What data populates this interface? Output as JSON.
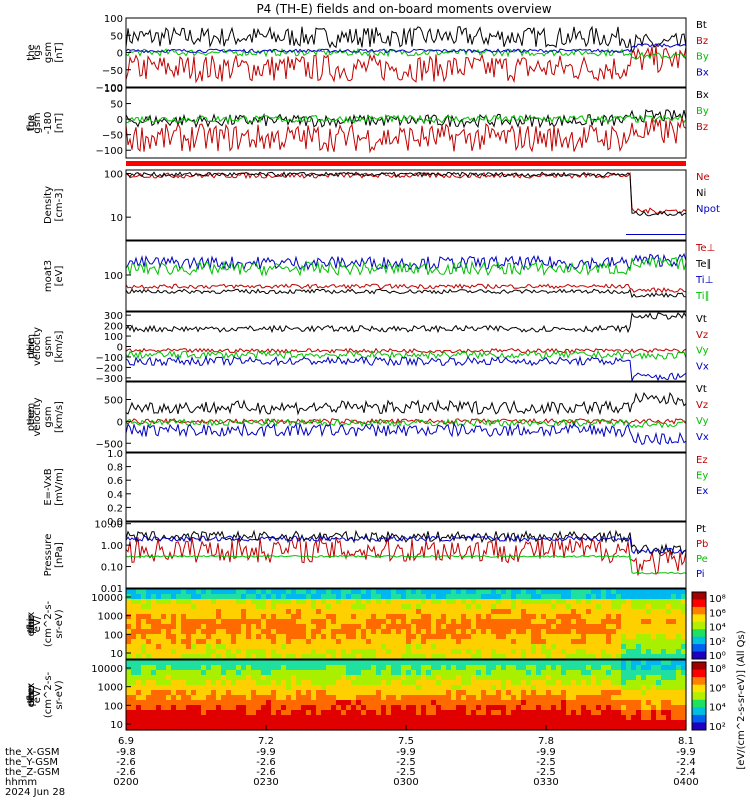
{
  "title": "P4 (TH-E) fields and on-board moments overview",
  "date_label": "2024 Jun 28",
  "ephemeris": {
    "labels": [
      "the_X-GSM",
      "the_Y-GSM",
      "the_Z-GSM",
      "hhmm"
    ],
    "columns": [
      {
        "x": "6.9",
        "xgsm": "-9.8",
        "ygsm": "-2.6",
        "zgsm": "-2.6",
        "hhmm": "0200"
      },
      {
        "x": "7.2",
        "xgsm": "-9.9",
        "ygsm": "-2.6",
        "zgsm": "-2.6",
        "hhmm": "0230"
      },
      {
        "x": "7.5",
        "xgsm": "-9.9",
        "ygsm": "-2.5",
        "zgsm": "-2.5",
        "hhmm": "0300"
      },
      {
        "x": "7.8",
        "xgsm": "-9.9",
        "ygsm": "-2.5",
        "zgsm": "-2.5",
        "hhmm": "0330"
      },
      {
        "x": "8.1",
        "xgsm": "-9.9",
        "ygsm": "-2.4",
        "zgsm": "-2.4",
        "hhmm": "0400"
      }
    ]
  },
  "colorbar": {
    "label": "[eV/(cm^2-s-sr-eV)] (All Qs)",
    "ticks_top": [
      "10⁸",
      "10⁶",
      "10⁴",
      "10²",
      "10⁰"
    ],
    "ticks_bottom": [
      "10⁸",
      "10⁶",
      "10⁴",
      "10²"
    ]
  },
  "chart_data": [
    {
      "type": "line",
      "panel": "fgs_gsm",
      "ylabel": [
        "the",
        "fgs",
        "gsm",
        "[nT]"
      ],
      "yticks": [
        "100",
        "50",
        "0",
        "−50",
        "−100"
      ],
      "ylim": [
        -100,
        100
      ],
      "series": [
        {
          "name": "Bt",
          "color": "#000000",
          "baseline": 45,
          "noise": 30,
          "late": 25
        },
        {
          "name": "Bz",
          "color": "#c00000",
          "baseline": -45,
          "noise": 40,
          "late": -20
        },
        {
          "name": "By",
          "color": "#00c000",
          "baseline": 0,
          "noise": 10,
          "late": -10
        },
        {
          "name": "Bx",
          "color": "#0000c0",
          "baseline": 5,
          "noise": 5,
          "late": 20
        }
      ]
    },
    {
      "type": "line",
      "panel": "fgs_gse",
      "ylabel": [
        "the",
        "fgs",
        "gsm",
        "-180",
        "[nT]"
      ],
      "yticks": [
        "100",
        "50",
        "0",
        "−50",
        "−100"
      ],
      "ylim": [
        -125,
        100
      ],
      "series": [
        {
          "name": "Bx",
          "color": "#000000",
          "baseline": -5,
          "noise": 20,
          "late": 10
        },
        {
          "name": "By",
          "color": "#00c000",
          "baseline": 0,
          "noise": 12,
          "late": 0
        },
        {
          "name": "Bz",
          "color": "#c00000",
          "baseline": -60,
          "noise": 45,
          "late": -40
        }
      ]
    },
    {
      "type": "line",
      "panel": "density",
      "ylabel": [
        "Density",
        "[cm-3]"
      ],
      "log": true,
      "yticks": [
        "100",
        "10"
      ],
      "ylim": [
        3,
        120
      ],
      "series": [
        {
          "name": "Ne",
          "color": "#c00000",
          "baseline": 90,
          "noise": 0.06,
          "late": 14
        },
        {
          "name": "Ni",
          "color": "#000000",
          "baseline": 95,
          "noise": 0.05,
          "late": 12
        },
        {
          "name": "Npot",
          "color": "#0000c0",
          "baseline": 0,
          "noise": 0,
          "late": 4
        }
      ]
    },
    {
      "type": "line",
      "panel": "temperature",
      "ylabel": [
        "moat3",
        "[eV]"
      ],
      "log": true,
      "yticks": [
        "100"
      ],
      "ylim": [
        15,
        600
      ],
      "series": [
        {
          "name": "Te⊥",
          "color": "#c00000",
          "baseline": 55,
          "noise": 0.05,
          "late": 45
        },
        {
          "name": "Te∥",
          "color": "#000000",
          "baseline": 42,
          "noise": 0.05,
          "late": 35
        },
        {
          "name": "Ti⊥",
          "color": "#0000c0",
          "baseline": 190,
          "noise": 0.15,
          "late": 220
        },
        {
          "name": "Ti∥",
          "color": "#00c000",
          "baseline": 140,
          "noise": 0.15,
          "late": 180
        }
      ]
    },
    {
      "type": "line",
      "panel": "peim_velocity",
      "ylabel": [
        "the",
        "peim",
        "velocity",
        "gsm",
        "[km/s]"
      ],
      "yticks": [
        "300",
        "200",
        "100",
        "0",
        "−100",
        "−200",
        "−300"
      ],
      "ylim": [
        -330,
        330
      ],
      "series": [
        {
          "name": "Vt",
          "color": "#000000",
          "baseline": 170,
          "noise": 30,
          "late": 290
        },
        {
          "name": "Vz",
          "color": "#c00000",
          "baseline": -40,
          "noise": 20,
          "late": -40
        },
        {
          "name": "Vy",
          "color": "#00c000",
          "baseline": -80,
          "noise": 35,
          "late": -90
        },
        {
          "name": "Vx",
          "color": "#0000c0",
          "baseline": -140,
          "noise": 40,
          "late": -290
        }
      ]
    },
    {
      "type": "line",
      "panel": "peem_velocity",
      "ylabel": [
        "the",
        "peem",
        "velocity",
        "gsm",
        "[km/s]"
      ],
      "yticks": [
        "500",
        "0",
        "−500"
      ],
      "ylim": [
        -700,
        900
      ],
      "series": [
        {
          "name": "Vt",
          "color": "#000000",
          "baseline": 320,
          "noise": 150,
          "late": 500
        },
        {
          "name": "Vz",
          "color": "#c00000",
          "baseline": 0,
          "noise": 60,
          "late": 0
        },
        {
          "name": "Vy",
          "color": "#00c000",
          "baseline": -30,
          "noise": 80,
          "late": -60
        },
        {
          "name": "Vx",
          "color": "#0000c0",
          "baseline": -200,
          "noise": 150,
          "late": -400
        }
      ]
    },
    {
      "type": "line",
      "panel": "efield",
      "ylabel": [
        "E=-VxB",
        "[mV/m]"
      ],
      "yticks": [
        "1.0",
        "0.8",
        "0.6",
        "0.4",
        "0.2",
        "0.0"
      ],
      "ylim": [
        0,
        1
      ],
      "series": [
        {
          "name": "Ez",
          "color": "#c00000"
        },
        {
          "name": "Ey",
          "color": "#00c000"
        },
        {
          "name": "Ex",
          "color": "#0000c0"
        }
      ]
    },
    {
      "type": "line",
      "panel": "pressure",
      "ylabel": [
        "Pressure",
        "[nPa]"
      ],
      "log": true,
      "yticks": [
        "10.00",
        "1.00",
        "0.10",
        "0.01"
      ],
      "ylim": [
        0.01,
        12
      ],
      "series": [
        {
          "name": "Pt",
          "color": "#000000",
          "baseline": 2.5,
          "noise": 0.25,
          "late": 0.6
        },
        {
          "name": "Pb",
          "color": "#c00000",
          "baseline": 0.6,
          "noise": 0.6,
          "late": 0.15
        },
        {
          "name": "Pe",
          "color": "#00c000",
          "baseline": 0.3,
          "noise": 0.04,
          "late": 0.05
        },
        {
          "name": "Pi",
          "color": "#0000c0",
          "baseline": 2.0,
          "noise": 0.12,
          "late": 0.55
        }
      ]
    },
    {
      "type": "heatmap",
      "panel": "peir_eflux",
      "ylabel": [
        "the",
        "peir",
        "en",
        "eflux",
        "eV/",
        "(cm^2-s-",
        "sr-eV)"
      ],
      "yticks": [
        "10000",
        "1000",
        "100",
        "10"
      ]
    },
    {
      "type": "heatmap",
      "panel": "peer_eflux",
      "ylabel": [
        "the",
        "peer",
        "en",
        "eflux",
        "eV/",
        "(cm^2-s-",
        "sr-eV)"
      ],
      "yticks": [
        "10000",
        "1000",
        "100",
        "10"
      ]
    }
  ]
}
